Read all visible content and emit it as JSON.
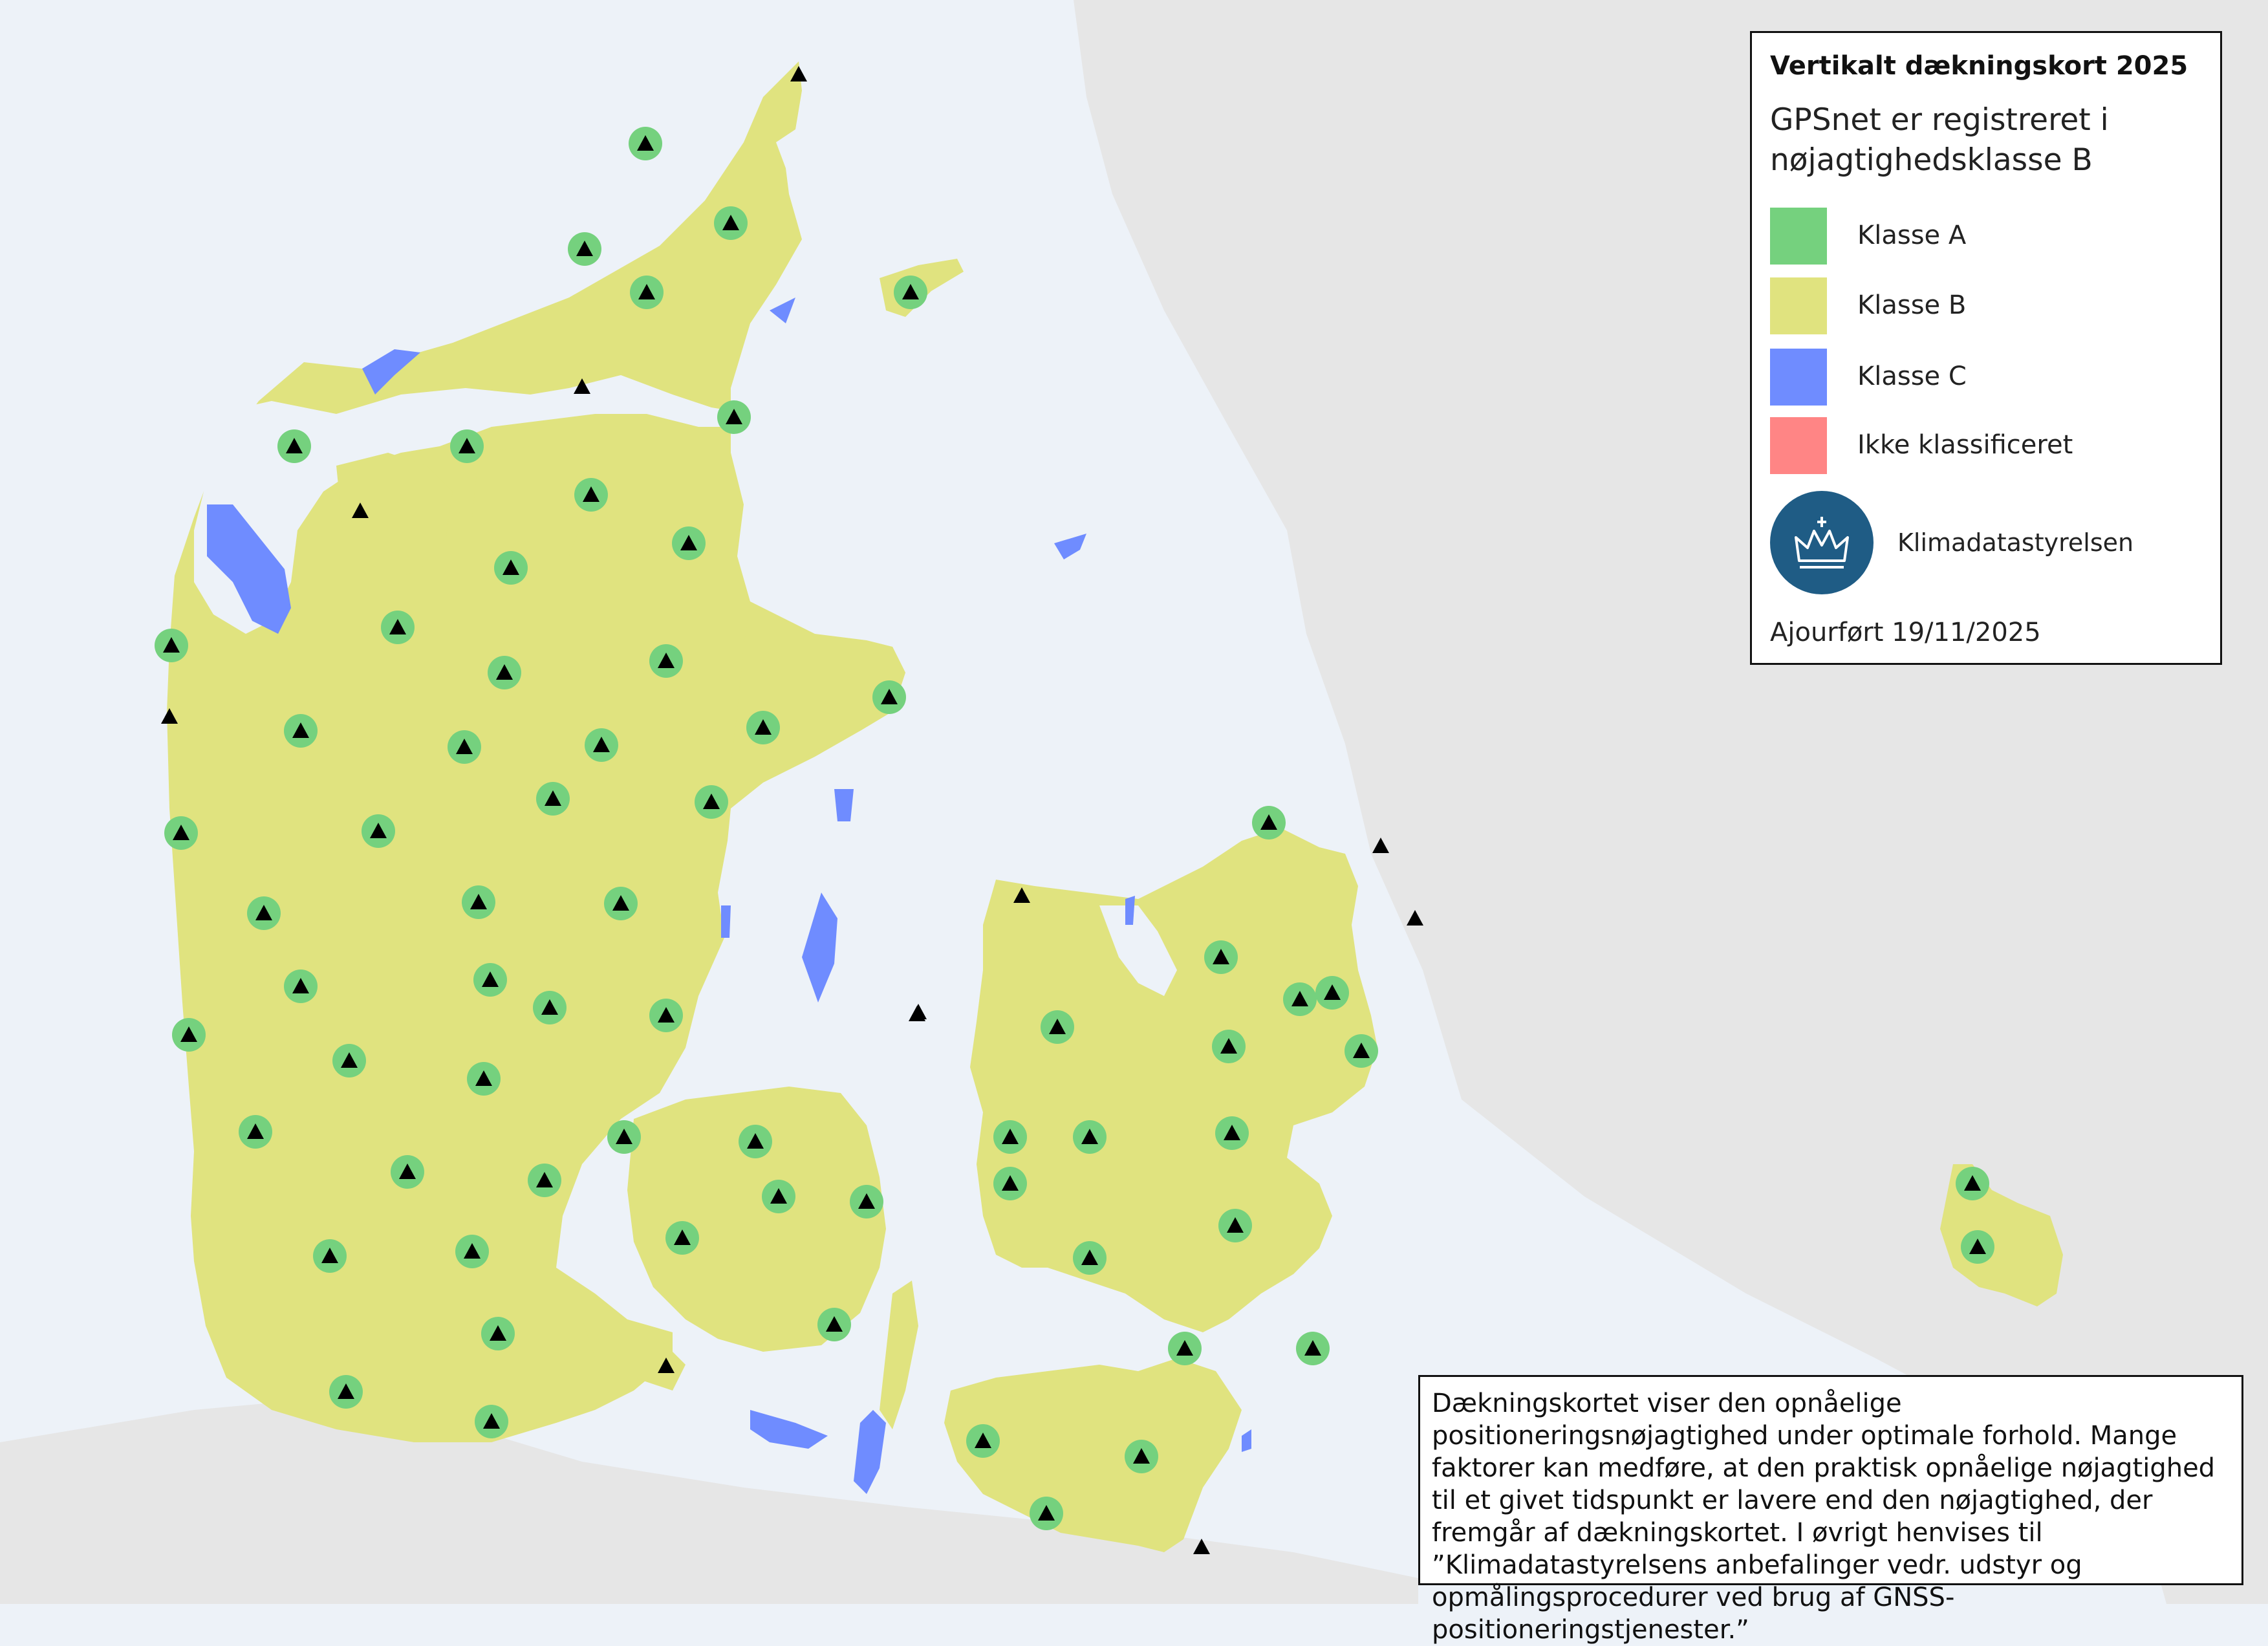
{
  "legend": {
    "title": "Vertikalt dækningskort 2025",
    "subtitle": "GPSnet er registreret i nøjagtighedsklasse B",
    "items": [
      {
        "label": "Klasse A",
        "color": "#75d17e"
      },
      {
        "label": "Klasse B",
        "color": "#e0e37f"
      },
      {
        "label": "Klasse C",
        "color": "#6f8cff"
      },
      {
        "label": "Ikke klassificeret",
        "color": "#ff8585"
      }
    ],
    "agency": "Klimadatastyrelsen",
    "updated": "Ajourført 19/11/2025"
  },
  "notice": {
    "text": "Dækningskortet viser den opnåelige positioneringsnøjagtighed under optimale forhold. Mange faktorer kan medføre, at den praktisk opnåelige nøjagtighed til et givet tidspunkt er lavere end den nøjagtighed, der fremgår af dækningskortet. I øvrigt henvises til ”Klimadatastyrelsens anbefalinger vedr. udstyr og opmålingsprocedurer ved brug af GNSS-positioneringstjenester.”"
  },
  "map": {
    "colors": {
      "sea": "#edf2f8",
      "foreign_land": "#e6e6e6",
      "class_a": "#75d17e",
      "class_b": "#e0e37f",
      "class_c": "#6f8cff",
      "station": "#000000"
    },
    "station_icon": "triangle-icon"
  }
}
